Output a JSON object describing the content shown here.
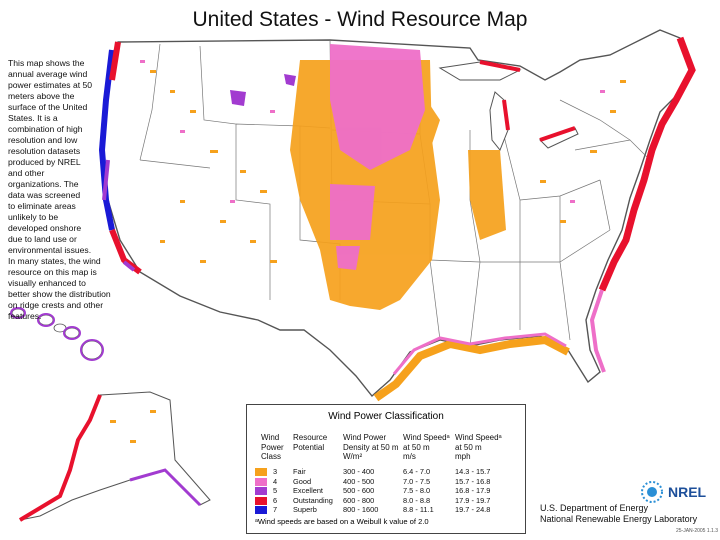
{
  "title": "United States - Wind Resource Map",
  "description": [
    "This map shows the",
    "annual average wind",
    "power estimates at 50",
    "meters above the",
    "surface of the United",
    "States. It is a",
    "combination of high",
    "resolution and low",
    "resolution datasets",
    "produced by NREL",
    "and other",
    "organizations. The",
    "data was screened",
    "to eliminate areas",
    "unlikely to be",
    "developed onshore",
    "due to land use or",
    "environmental issues.",
    "In many states, the wind",
    "resource on this map is",
    "visually enhanced to",
    "better show the distribution",
    "on ridge crests and other",
    "features."
  ],
  "legend": {
    "title": "Wind Power Classification",
    "headers": {
      "class": [
        "Wind",
        "Power",
        "Class"
      ],
      "potential": [
        "Resource",
        "Potential"
      ],
      "density": [
        "Wind Power",
        "Density at 50 m",
        "W/m²"
      ],
      "speed_ms": [
        "Wind Speedᵃ",
        "at 50 m",
        "m/s"
      ],
      "speed_mph": [
        "Wind Speedᵃ",
        "at 50 m",
        "mph"
      ]
    },
    "rows": [
      {
        "cls": "3",
        "potential": "Fair",
        "density": "300 - 400",
        "ms": "6.4 - 7.0",
        "mph": "14.3 - 15.7",
        "color": "#f6a11c"
      },
      {
        "cls": "4",
        "potential": "Good",
        "density": "400 - 500",
        "ms": "7.0 - 7.5",
        "mph": "15.7 - 16.8",
        "color": "#ee6fc8"
      },
      {
        "cls": "5",
        "potential": "Excellent",
        "density": "500 - 600",
        "ms": "7.5 - 8.0",
        "mph": "16.8 - 17.9",
        "color": "#a23bd0"
      },
      {
        "cls": "6",
        "potential": "Outstanding",
        "density": "600 - 800",
        "ms": "8.0 - 8.8",
        "mph": "17.9 - 19.7",
        "color": "#e8112d"
      },
      {
        "cls": "7",
        "potential": "Superb",
        "density": "800 - 1600",
        "ms": "8.8 - 11.1",
        "mph": "19.7 - 24.8",
        "color": "#1a1ad6"
      }
    ],
    "footnote": "ᵃWind speeds are based on a Weibull k value of 2.0"
  },
  "agency": [
    "U.S. Department of Energy",
    "National Renewable Energy Laboratory"
  ],
  "logo_text": "NREL",
  "doc_id": "25-JAN-2005 1.1.3",
  "colors": {
    "fair": "#f6a11c",
    "good": "#ee6fc8",
    "excellent": "#a23bd0",
    "outstanding": "#e8112d",
    "superb": "#1a1ad6",
    "state_border": "#555555"
  }
}
